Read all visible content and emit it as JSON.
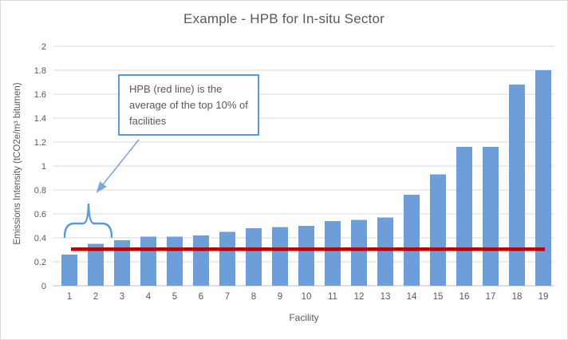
{
  "chart_data": {
    "type": "bar",
    "title": "Example - HPB for In-situ Sector",
    "xlabel": "Facility",
    "ylabel": "Emissions Intensity (tCO2e/m³ bitumen)",
    "categories": [
      "1",
      "2",
      "3",
      "4",
      "5",
      "6",
      "7",
      "8",
      "9",
      "10",
      "11",
      "12",
      "13",
      "14",
      "15",
      "16",
      "17",
      "18",
      "19"
    ],
    "values": [
      0.26,
      0.35,
      0.38,
      0.41,
      0.41,
      0.42,
      0.45,
      0.48,
      0.49,
      0.5,
      0.54,
      0.55,
      0.57,
      0.76,
      0.93,
      1.16,
      1.16,
      1.68,
      1.8
    ],
    "ylim": [
      0,
      2
    ],
    "ytick_labels": [
      "0",
      "0.2",
      "0.4",
      "0.6",
      "0.8",
      "1",
      "1.2",
      "1.4",
      "1.6",
      "1.8",
      "2"
    ],
    "grid": true,
    "legend": "none",
    "bar_color": "#6d9ed9",
    "hpb_line": {
      "name": "HPB",
      "value": 0.305,
      "color": "#c00000"
    },
    "annotation": {
      "text": "HPB (red line) is the average of the top 10% of facilities",
      "border_color": "#5b9bd5",
      "arrow_color": "#7fa5dc",
      "brace_color": "#5b9bd5"
    },
    "axis_text_color": "#595959",
    "gridline_color": "#d9d9d9",
    "axis_line_color": "#bfbfbf"
  }
}
